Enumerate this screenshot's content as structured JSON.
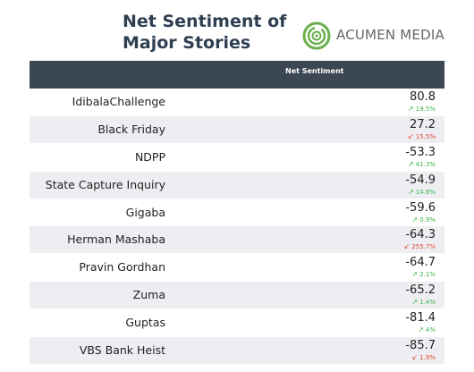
{
  "title_lines": [
    "Net Sentiment of",
    "Major Stories"
  ],
  "logo": {
    "text": "ACUMEN MEDIA",
    "icon": "acumen-spiral-logo-icon",
    "color": "#6ab04c"
  },
  "chart_data": {
    "type": "table",
    "column_header": "Net Sentiment",
    "rows": [
      {
        "name": "IdibalaChallenge",
        "value": "80.8",
        "change": "19.5%",
        "direction": "up"
      },
      {
        "name": "Black Friday",
        "value": "27.2",
        "change": "15.5%",
        "direction": "down"
      },
      {
        "name": "NDPP",
        "value": "-53.3",
        "change": "41.3%",
        "direction": "up"
      },
      {
        "name": "State Capture Inquiry",
        "value": "-54.9",
        "change": "14.8%",
        "direction": "up"
      },
      {
        "name": "Gigaba",
        "value": "-59.6",
        "change": "0.9%",
        "direction": "up"
      },
      {
        "name": "Herman Mashaba",
        "value": "-64.3",
        "change": "255.7%",
        "direction": "down"
      },
      {
        "name": "Pravin Gordhan",
        "value": "-64.7",
        "change": "2.1%",
        "direction": "up"
      },
      {
        "name": "Zuma",
        "value": "-65.2",
        "change": "1.4%",
        "direction": "up"
      },
      {
        "name": "Guptas",
        "value": "-81.4",
        "change": "4%",
        "direction": "up"
      },
      {
        "name": "VBS Bank Heist",
        "value": "-85.7",
        "change": "1.9%",
        "direction": "down"
      }
    ]
  },
  "colors": {
    "header_bg": "#3b4752",
    "row_alt": "#eeeef2",
    "up": "#3cb54a",
    "down": "#e04a2f"
  }
}
